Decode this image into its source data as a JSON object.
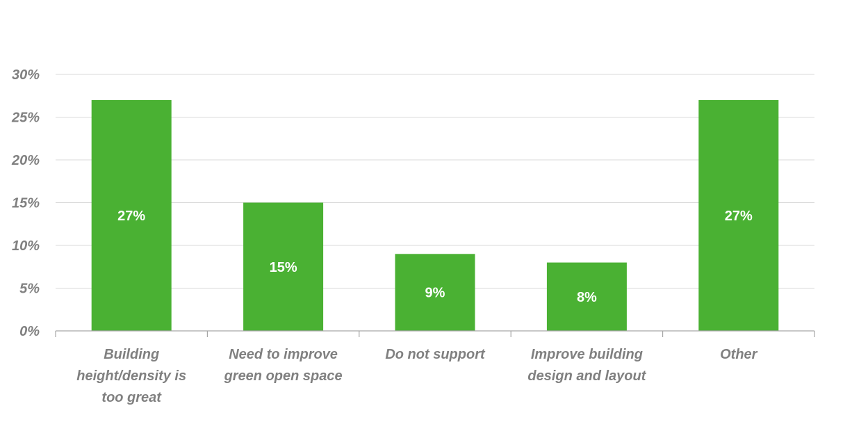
{
  "chart_data": {
    "type": "bar",
    "categories": [
      [
        "Building",
        "height/density is",
        "too great"
      ],
      [
        "Need to improve",
        "green open space"
      ],
      [
        "Do not support"
      ],
      [
        "Improve building",
        "design and layout"
      ],
      [
        "Other"
      ]
    ],
    "values": [
      27,
      15,
      9,
      8,
      27
    ],
    "data_labels": [
      "27%",
      "15%",
      "9%",
      "8%",
      "27%"
    ],
    "ylim": [
      0,
      30
    ],
    "yticks": [
      0,
      5,
      10,
      15,
      20,
      25,
      30
    ],
    "ytick_labels": [
      "0%",
      "5%",
      "10%",
      "15%",
      "20%",
      "25%",
      "30%"
    ],
    "grid": true,
    "bar_color": "#4ab133",
    "grid_color": "#d9d9d9",
    "axis_color": "#a6a6a6",
    "label_color": "#808080"
  }
}
